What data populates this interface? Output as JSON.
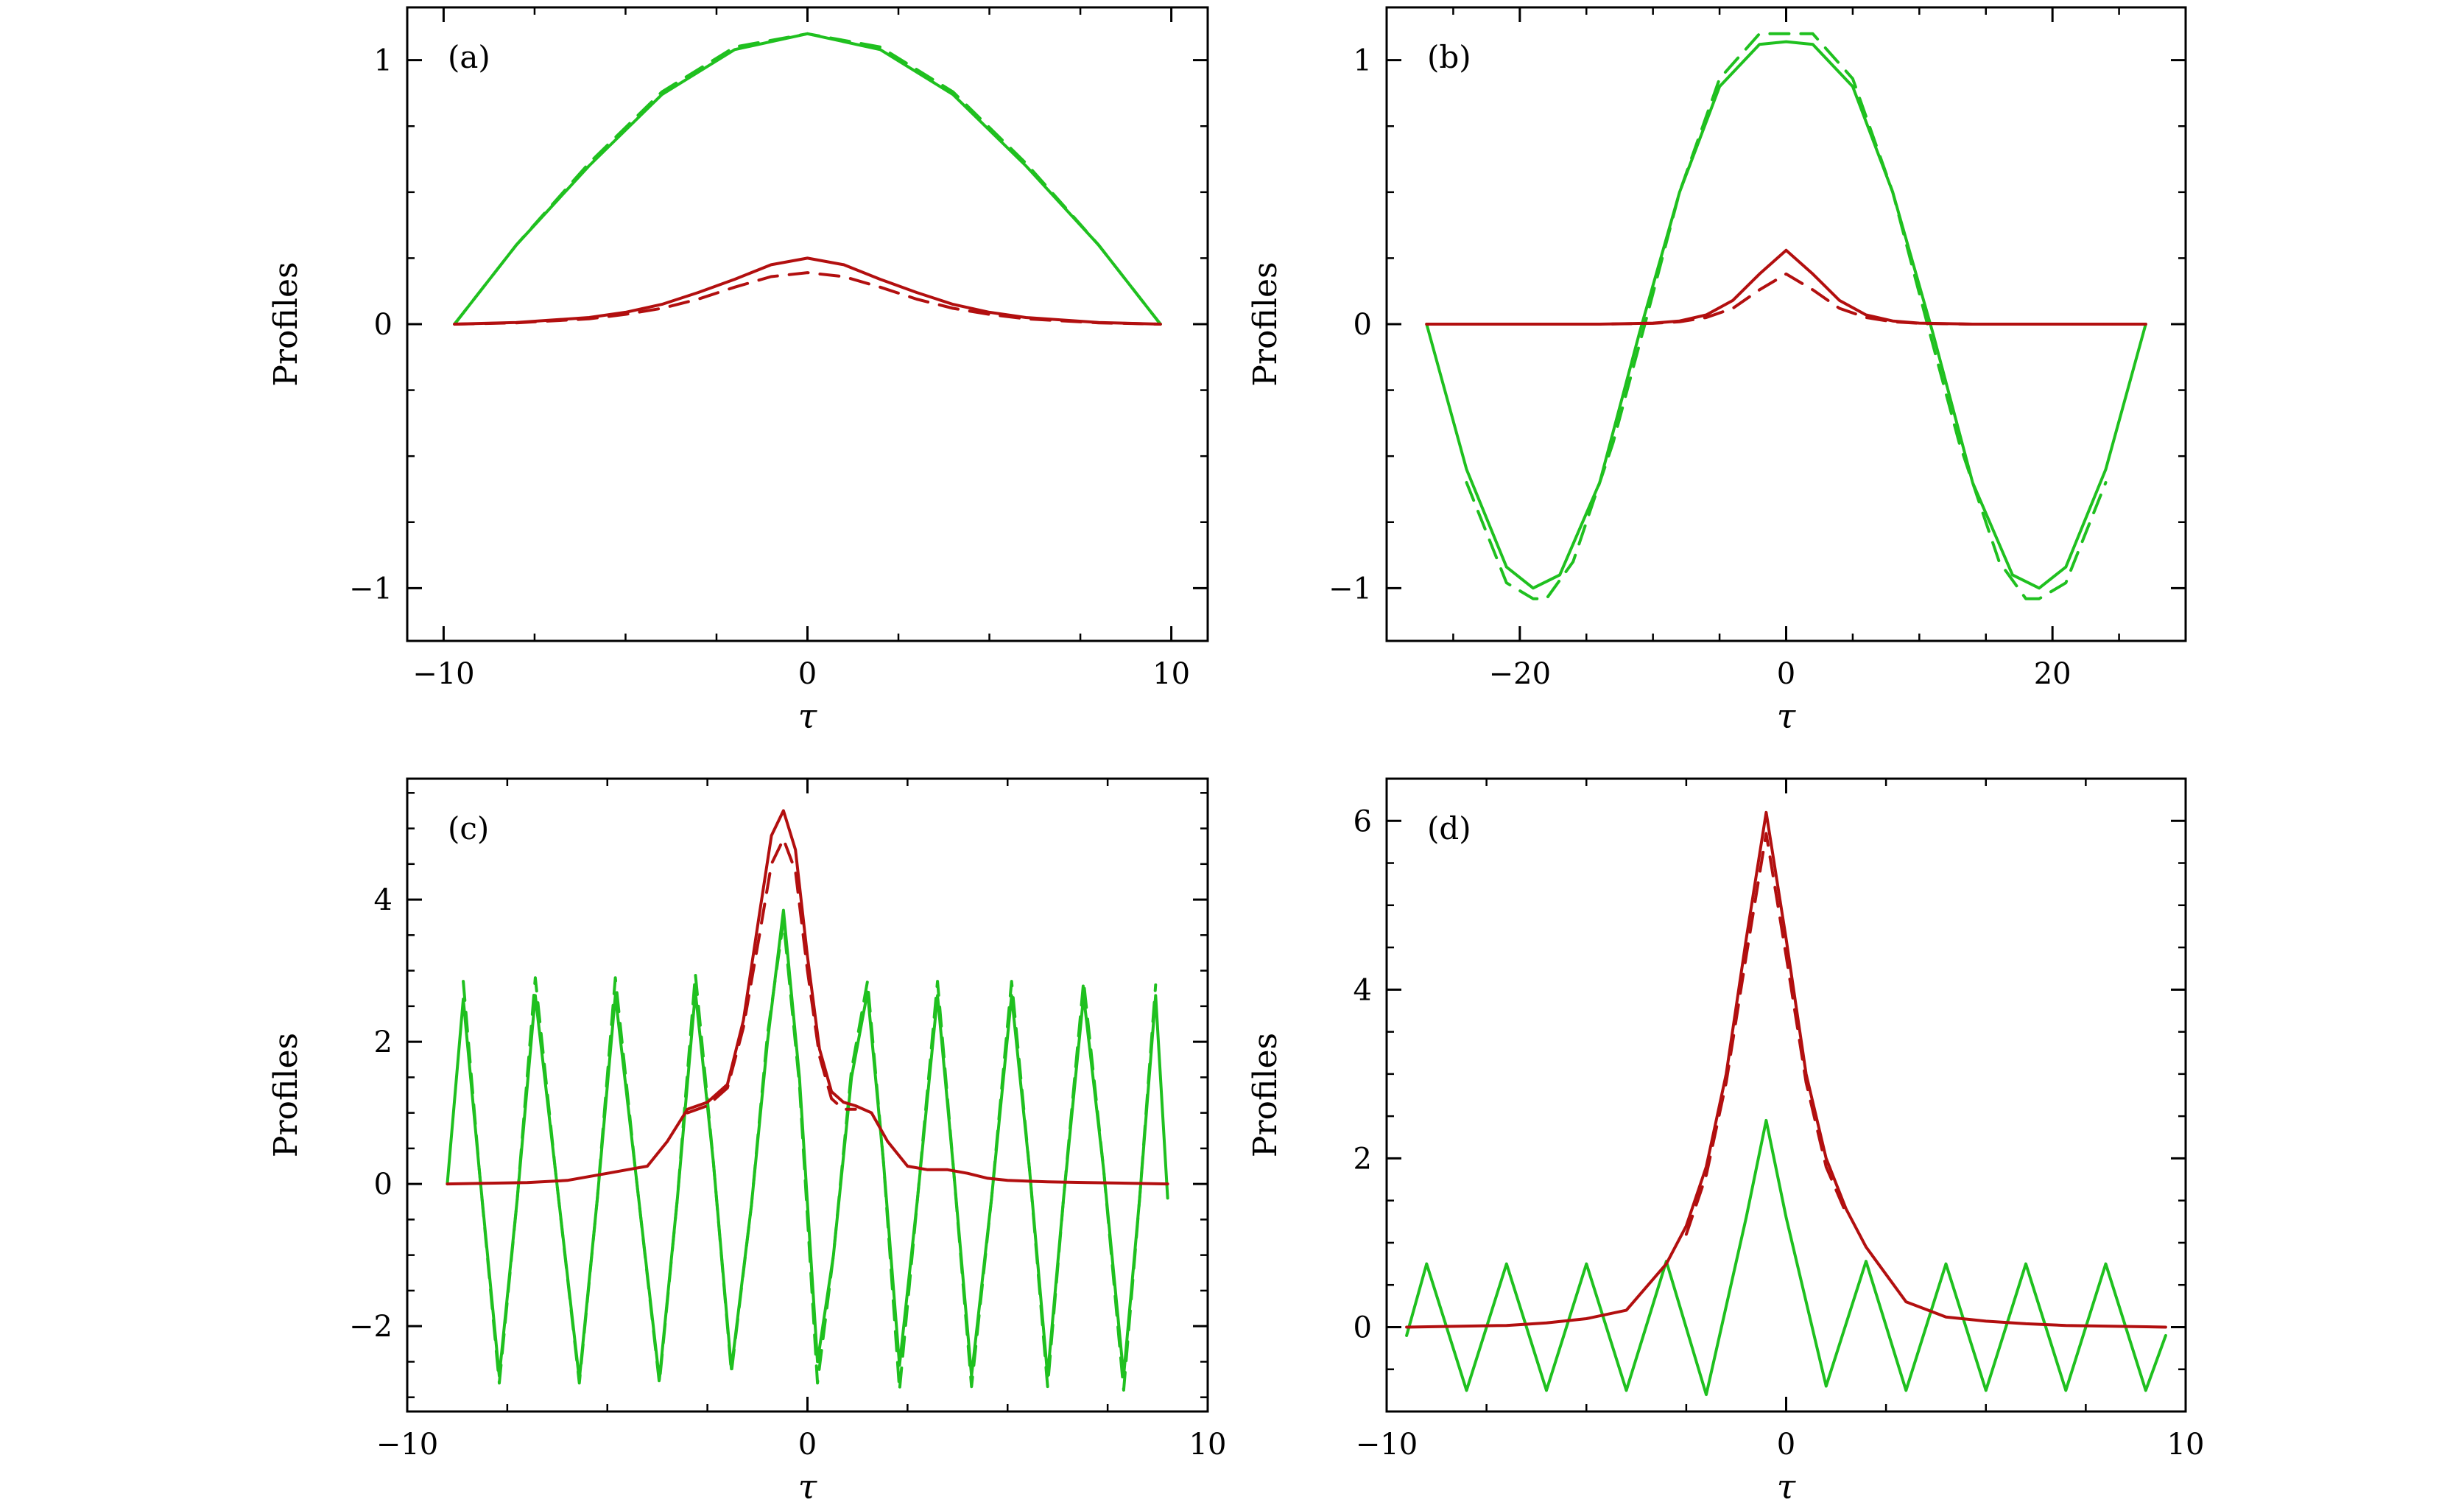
{
  "colors": {
    "green": "#1fc01f",
    "red": "#b20f0f",
    "axis": "#000000"
  },
  "chart_data": [
    {
      "type": "line",
      "panel_label": "(a)",
      "xlabel": "τ",
      "ylabel": "Profiles",
      "xlim": [
        -11,
        11
      ],
      "ylim": [
        -1.2,
        1.2
      ],
      "xticks": [
        -10,
        0,
        10
      ],
      "xtick_labels": [
        "−10",
        "0",
        "10"
      ],
      "yticks": [
        -1,
        0,
        1
      ],
      "ytick_labels": [
        "−1",
        "0",
        "1"
      ],
      "grid": false,
      "series": [
        {
          "color": "green",
          "dash": false,
          "x": [
            -9.7,
            -8,
            -6,
            -4,
            -2,
            0,
            2,
            4,
            6,
            8,
            9.7
          ],
          "y": [
            0,
            0.3,
            0.6,
            0.87,
            1.04,
            1.1,
            1.04,
            0.87,
            0.6,
            0.3,
            0
          ]
        },
        {
          "color": "green",
          "dash": true,
          "x": [
            -9.7,
            -8,
            -6,
            -4,
            -2,
            0,
            2,
            4,
            6,
            8,
            9.7
          ],
          "y": [
            0,
            0.3,
            0.61,
            0.88,
            1.05,
            1.1,
            1.05,
            0.88,
            0.61,
            0.3,
            0
          ]
        },
        {
          "color": "red",
          "dash": false,
          "x": [
            -9.7,
            -8,
            -6,
            -5,
            -4,
            -3,
            -2,
            -1,
            0,
            1,
            2,
            3,
            4,
            5,
            6,
            8,
            9.7
          ],
          "y": [
            0,
            0.006,
            0.025,
            0.045,
            0.075,
            0.12,
            0.17,
            0.225,
            0.25,
            0.225,
            0.17,
            0.12,
            0.075,
            0.045,
            0.025,
            0.006,
            0
          ]
        },
        {
          "color": "red",
          "dash": true,
          "x": [
            -9.7,
            -8,
            -6,
            -5,
            -4,
            -3,
            -2,
            -1,
            0,
            1,
            2,
            3,
            4,
            5,
            6,
            8,
            9.7
          ],
          "y": [
            0,
            0.005,
            0.02,
            0.037,
            0.06,
            0.095,
            0.14,
            0.18,
            0.195,
            0.18,
            0.14,
            0.095,
            0.06,
            0.037,
            0.02,
            0.005,
            0
          ]
        }
      ]
    },
    {
      "type": "line",
      "panel_label": "(b)",
      "xlabel": "τ",
      "ylabel": "Profiles",
      "xlim": [
        -30,
        30
      ],
      "ylim": [
        -1.2,
        1.2
      ],
      "xticks": [
        -20,
        0,
        20
      ],
      "xtick_labels": [
        "−20",
        "0",
        "20"
      ],
      "yticks": [
        -1,
        0,
        1
      ],
      "ytick_labels": [
        "−1",
        "0",
        "1"
      ],
      "grid": false,
      "series": [
        {
          "color": "green",
          "dash": false,
          "x": [
            -27,
            -24,
            -21,
            -19,
            -17,
            -14,
            -11,
            -8,
            -5,
            -2,
            0,
            2,
            5,
            8,
            11,
            14,
            17,
            19,
            21,
            24,
            27
          ],
          "y": [
            0,
            -0.55,
            -0.92,
            -1.0,
            -0.95,
            -0.6,
            -0.03,
            0.5,
            0.9,
            1.06,
            1.07,
            1.06,
            0.9,
            0.5,
            -0.03,
            -0.6,
            -0.95,
            -1.0,
            -0.92,
            -0.55,
            0
          ]
        },
        {
          "color": "green",
          "dash": true,
          "x": [
            -24,
            -21,
            -19,
            -18,
            -16,
            -13,
            -10.5,
            -8,
            -5,
            -2,
            0,
            2,
            5,
            8,
            10.5,
            13,
            16,
            18,
            19,
            21,
            24
          ],
          "y": [
            -0.6,
            -0.98,
            -1.04,
            -1.04,
            -0.9,
            -0.45,
            0.02,
            0.5,
            0.93,
            1.1,
            1.1,
            1.1,
            0.93,
            0.5,
            0.02,
            -0.45,
            -0.9,
            -1.04,
            -1.04,
            -0.98,
            -0.6
          ]
        },
        {
          "color": "red",
          "dash": false,
          "x": [
            -27,
            -14,
            -10,
            -8,
            -6,
            -4,
            -2,
            0,
            2,
            4,
            6,
            8,
            10,
            14,
            27
          ],
          "y": [
            0,
            0,
            0.004,
            0.012,
            0.035,
            0.09,
            0.19,
            0.28,
            0.19,
            0.09,
            0.035,
            0.012,
            0.004,
            0,
            0
          ]
        },
        {
          "color": "red",
          "dash": true,
          "x": [
            -27,
            -14,
            -10,
            -8,
            -6,
            -4,
            -2,
            0,
            2,
            4,
            6,
            8,
            10,
            14,
            27
          ],
          "y": [
            0,
            0,
            0.003,
            0.009,
            0.025,
            0.06,
            0.13,
            0.19,
            0.13,
            0.06,
            0.025,
            0.009,
            0.003,
            0,
            0
          ]
        }
      ]
    },
    {
      "type": "line",
      "panel_label": "(c)",
      "xlabel": "τ",
      "ylabel": "Profiles",
      "xlim": [
        -10,
        10
      ],
      "ylim": [
        -3.2,
        5.7
      ],
      "xticks": [
        -10,
        0,
        10
      ],
      "xtick_labels": [
        "−10",
        "0",
        "10"
      ],
      "yticks": [
        -2,
        0,
        2,
        4
      ],
      "ytick_labels": [
        "−2",
        "0",
        "2",
        "4"
      ],
      "grid": false,
      "series": [
        {
          "color": "green",
          "dash": false,
          "x": [
            -9.0,
            -8.6,
            -8.2,
            -7.7,
            -7.25,
            -6.8,
            -6.3,
            -5.7,
            -5.25,
            -4.8,
            -4.3,
            -3.7,
            -3.25,
            -2.8,
            -2.35,
            -1.9,
            -1.4,
            -1.0,
            -0.6,
            -0.2,
            0.25,
            0.65,
            1.1,
            1.5,
            1.9,
            2.3,
            2.75,
            3.25,
            3.65,
            4.1,
            4.6,
            5.1,
            5.55,
            6.0,
            6.4,
            6.9,
            7.4,
            7.9,
            8.3,
            8.7,
            9.0
          ],
          "y": [
            0,
            2.6,
            0.2,
            -2.7,
            -0.2,
            2.65,
            0.2,
            -2.75,
            -0.2,
            2.65,
            0.2,
            -2.75,
            -0.2,
            2.7,
            0.3,
            -2.6,
            -0.3,
            2.0,
            3.85,
            1.5,
            -2.5,
            -1.0,
            1.5,
            2.7,
            0.3,
            -2.55,
            -0.2,
            2.65,
            0.2,
            -2.7,
            -0.2,
            2.65,
            0.2,
            -2.7,
            -0.2,
            2.65,
            0.2,
            -2.7,
            -0.2,
            2.65,
            -0.2
          ]
        },
        {
          "color": "green",
          "dash": true,
          "x": [
            -8.6,
            -8.2,
            -7.7,
            -7.25,
            -6.8,
            -6.3,
            -5.7,
            -5.25,
            -4.8,
            -4.3,
            -3.7,
            -3.25,
            -2.8,
            -2.35,
            -1.9,
            -1.4,
            -1.0,
            -0.6,
            -0.2,
            0.25,
            0.65,
            1.1,
            1.5,
            1.9,
            2.3,
            2.75,
            3.25,
            3.65,
            4.1,
            4.6,
            5.1,
            5.55,
            6.0,
            6.4,
            6.9,
            7.4,
            7.9,
            8.3,
            8.7
          ],
          "y": [
            2.85,
            0.2,
            -2.8,
            -0.2,
            2.9,
            0.2,
            -2.8,
            -0.2,
            2.9,
            0.2,
            -2.8,
            -0.2,
            2.95,
            0.3,
            -2.65,
            -0.3,
            2.1,
            3.7,
            1.4,
            -2.8,
            -1.0,
            1.6,
            2.85,
            0.3,
            -2.9,
            -0.2,
            2.85,
            0.2,
            -2.85,
            -0.2,
            2.85,
            0.2,
            -2.85,
            -0.2,
            2.85,
            0.2,
            -2.9,
            -0.2,
            2.8
          ]
        },
        {
          "color": "red",
          "dash": false,
          "x": [
            -9.0,
            -7.0,
            -6.0,
            -5.0,
            -4.5,
            -4.0,
            -3.5,
            -3.0,
            -2.5,
            -2.0,
            -1.6,
            -1.2,
            -0.9,
            -0.6,
            -0.3,
            0.0,
            0.3,
            0.6,
            0.9,
            1.2,
            1.6,
            2.0,
            2.5,
            3.0,
            3.5,
            4.0,
            4.5,
            5.0,
            6.0,
            7.0,
            9.0
          ],
          "y": [
            0,
            0.02,
            0.05,
            0.15,
            0.2,
            0.25,
            0.6,
            1.05,
            1.15,
            1.4,
            2.3,
            3.8,
            4.9,
            5.25,
            4.7,
            3.2,
            1.9,
            1.3,
            1.15,
            1.1,
            1.0,
            0.6,
            0.25,
            0.2,
            0.2,
            0.15,
            0.08,
            0.05,
            0.03,
            0.02,
            0.0
          ]
        },
        {
          "color": "red",
          "dash": true,
          "x": [
            -3.0,
            -2.5,
            -2.0,
            -1.6,
            -1.2,
            -0.9,
            -0.6,
            -0.3,
            0.0,
            0.3,
            0.6,
            0.9,
            1.2
          ],
          "y": [
            1.0,
            1.1,
            1.35,
            2.2,
            3.5,
            4.5,
            4.85,
            4.4,
            3.0,
            1.8,
            1.2,
            1.05,
            1.05
          ]
        }
      ]
    },
    {
      "type": "line",
      "panel_label": "(d)",
      "xlabel": "τ",
      "ylabel": "Profiles",
      "xlim": [
        -10,
        10
      ],
      "ylim": [
        -1.0,
        6.5
      ],
      "xticks": [
        -10,
        0,
        10
      ],
      "xtick_labels": [
        "−10",
        "0",
        "10"
      ],
      "yticks": [
        0,
        2,
        4,
        6
      ],
      "ytick_labels": [
        "0",
        "2",
        "4",
        "6"
      ],
      "grid": false,
      "series": [
        {
          "color": "green",
          "dash": false,
          "x": [
            -9.5,
            -9.0,
            -8.0,
            -7.0,
            -6.0,
            -5.0,
            -4.0,
            -3.0,
            -2.0,
            -1.0,
            -0.5,
            0.0,
            1.0,
            2.0,
            3.0,
            4.0,
            5.0,
            6.0,
            7.0,
            8.0,
            9.0,
            9.5
          ],
          "y": [
            -0.1,
            0.75,
            -0.75,
            0.75,
            -0.75,
            0.75,
            -0.75,
            0.78,
            -0.8,
            1.3,
            2.45,
            1.3,
            -0.7,
            0.78,
            -0.75,
            0.75,
            -0.75,
            0.75,
            -0.75,
            0.75,
            -0.75,
            -0.1
          ]
        },
        {
          "color": "red",
          "dash": false,
          "x": [
            -9.5,
            -7.0,
            -6.0,
            -5.0,
            -4.0,
            -3.0,
            -2.5,
            -2.0,
            -1.5,
            -1.0,
            -0.5,
            0.0,
            0.5,
            1.0,
            1.5,
            2.0,
            3.0,
            4.0,
            5.0,
            6.0,
            7.0,
            9.5
          ],
          "y": [
            0,
            0.02,
            0.05,
            0.1,
            0.2,
            0.75,
            1.2,
            1.9,
            3.0,
            4.6,
            6.1,
            4.6,
            3.0,
            2.0,
            1.4,
            0.95,
            0.3,
            0.12,
            0.07,
            0.04,
            0.02,
            0
          ]
        },
        {
          "color": "red",
          "dash": true,
          "x": [
            -2.5,
            -2.0,
            -1.5,
            -1.0,
            -0.5,
            0.0,
            0.5,
            1.0,
            1.5
          ],
          "y": [
            1.1,
            1.8,
            2.9,
            4.4,
            5.85,
            4.4,
            2.9,
            1.9,
            1.35
          ]
        }
      ]
    }
  ]
}
